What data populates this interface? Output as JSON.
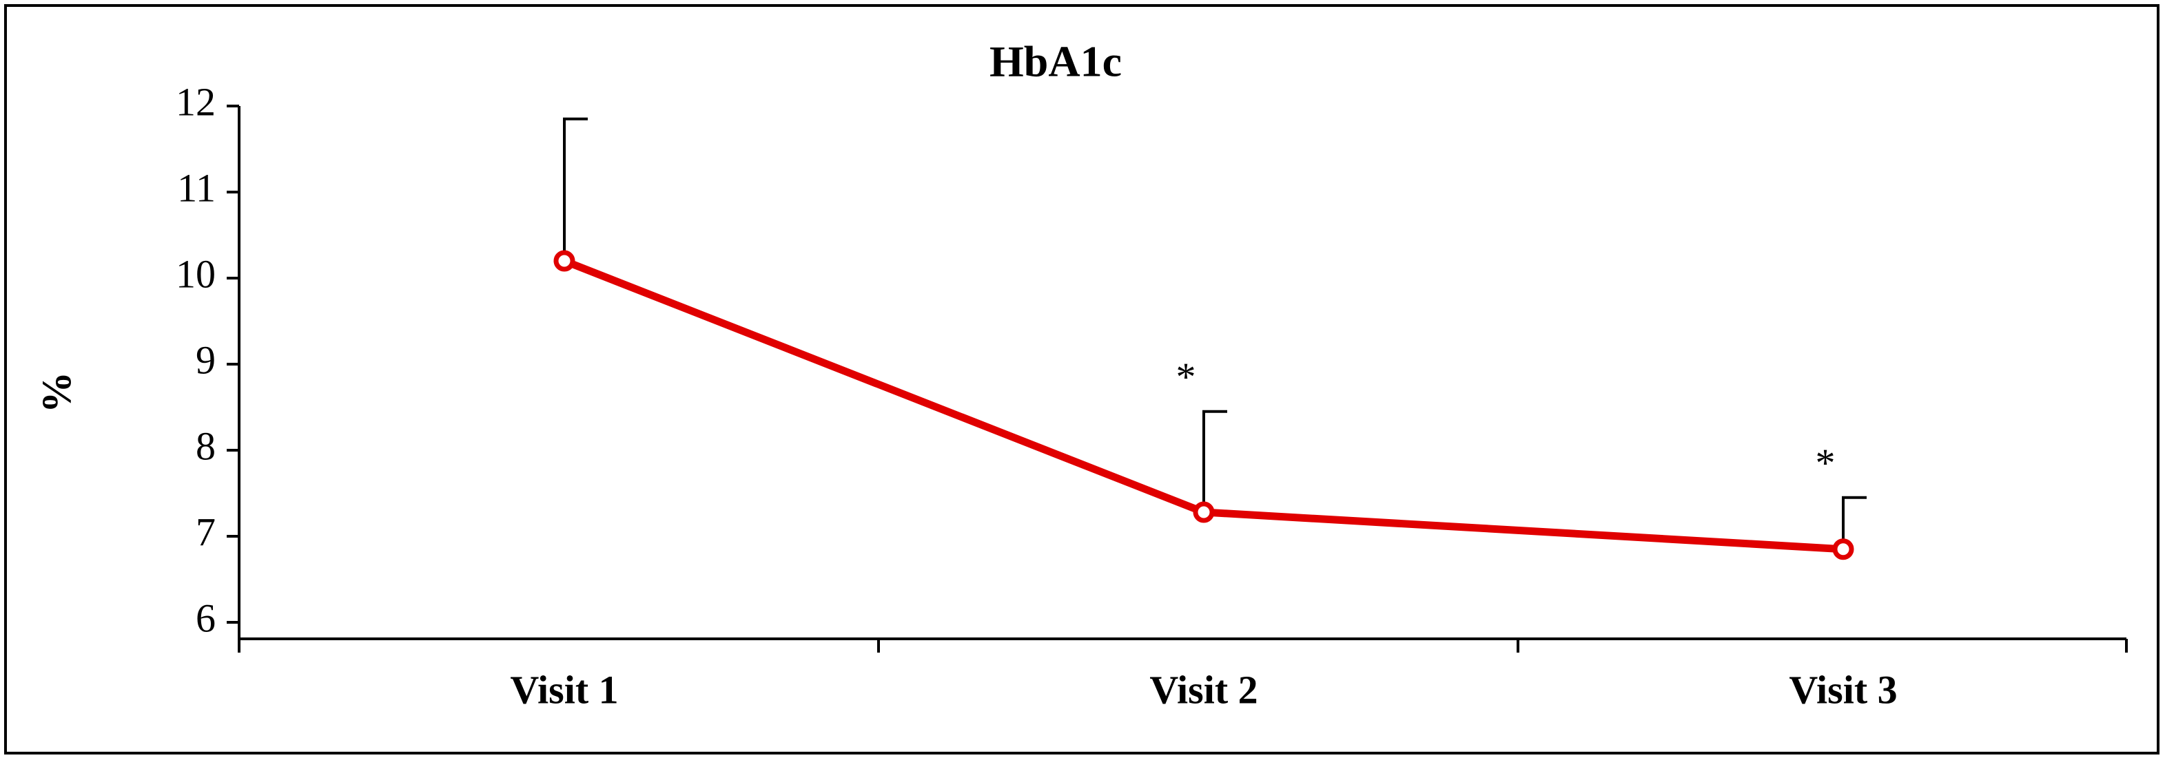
{
  "chart_data": {
    "type": "line",
    "title": "HbA1c",
    "y_label": "%",
    "categories": [
      "Visit 1",
      "Visit 2",
      "Visit 3"
    ],
    "series": [
      {
        "name": "HbA1c",
        "color": "#e00000",
        "values": [
          10.2,
          7.28,
          6.85
        ],
        "errors": [
          1.65,
          1.17,
          0.6
        ]
      }
    ],
    "annotations": [
      null,
      "*",
      "*"
    ],
    "ylim": [
      6,
      12
    ],
    "yticks": [
      6,
      7,
      8,
      9,
      10,
      11,
      12
    ]
  }
}
